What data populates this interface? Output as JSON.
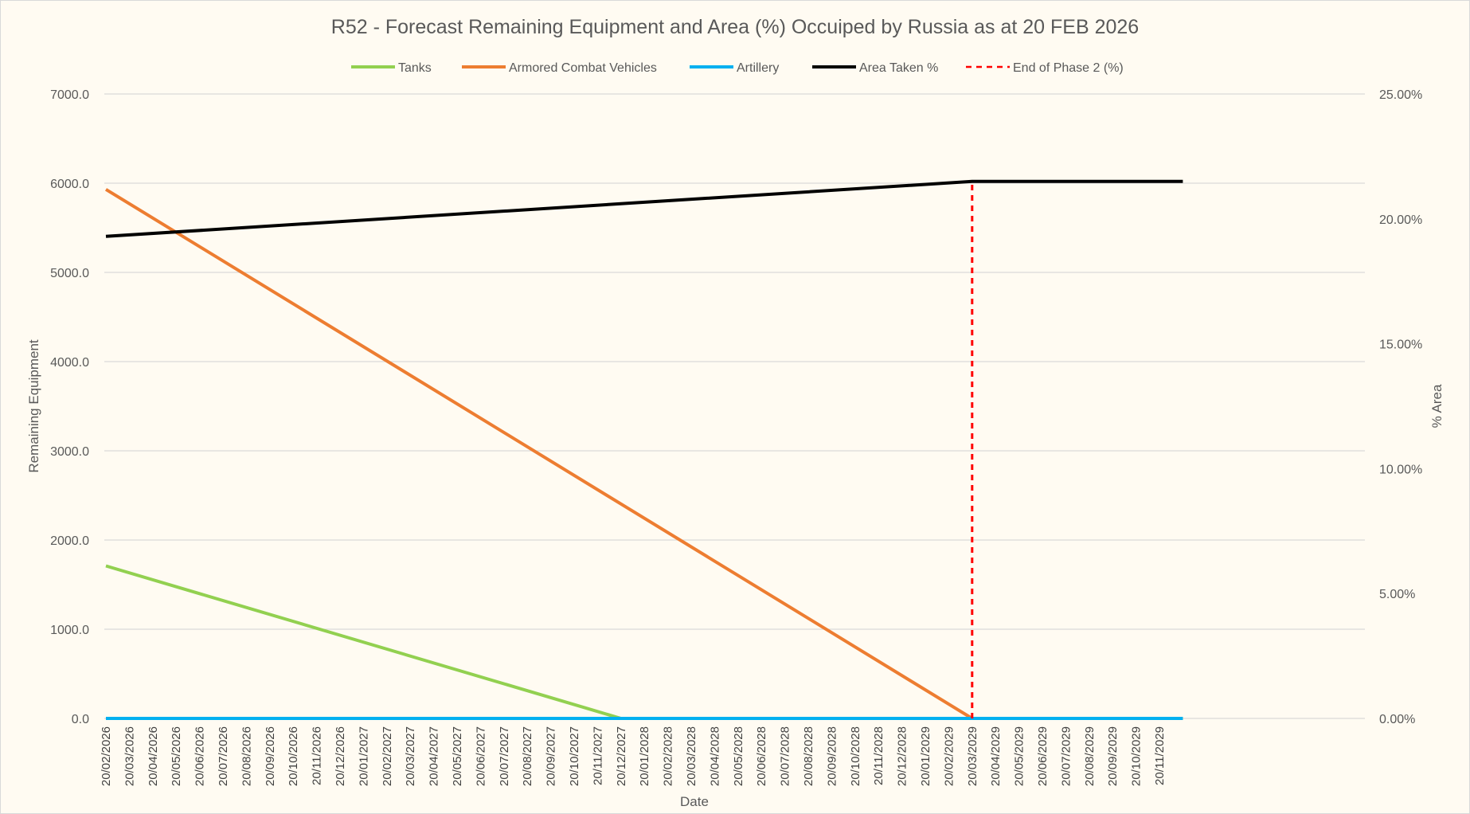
{
  "chart_data": {
    "type": "line",
    "title": "R52 - Forecast Remaining Equipment and Area (%) Occuiped by Russia as at 20 FEB 2026",
    "xlabel": "Date",
    "ylabel": "Remaining Equipment",
    "y2label": "% Area",
    "ylim": [
      0,
      7000
    ],
    "y2lim": [
      0,
      25
    ],
    "yticks": [
      "0.0",
      "1000.0",
      "2000.0",
      "3000.0",
      "4000.0",
      "5000.0",
      "6000.0",
      "7000.0"
    ],
    "y2ticks": [
      "0.00%",
      "5.00%",
      "10.00%",
      "15.00%",
      "20.00%",
      "25.00%"
    ],
    "grid": true,
    "legend_position": "top",
    "categories": [
      "20/02/2026",
      "20/03/2026",
      "20/04/2026",
      "20/05/2026",
      "20/06/2026",
      "20/07/2026",
      "20/08/2026",
      "20/09/2026",
      "20/10/2026",
      "20/11/2026",
      "20/12/2026",
      "20/01/2027",
      "20/02/2027",
      "20/03/2027",
      "20/04/2027",
      "20/05/2027",
      "20/06/2027",
      "20/07/2027",
      "20/08/2027",
      "20/09/2027",
      "20/10/2027",
      "20/11/2027",
      "20/12/2027",
      "20/01/2028",
      "20/02/2028",
      "20/03/2028",
      "20/04/2028",
      "20/05/2028",
      "20/06/2028",
      "20/07/2028",
      "20/08/2028",
      "20/09/2028",
      "20/10/2028",
      "20/11/2028",
      "20/12/2028",
      "20/01/2029",
      "20/02/2029",
      "20/03/2029",
      "20/04/2029",
      "20/05/2029",
      "20/06/2029",
      "20/07/2029",
      "20/08/2029",
      "20/09/2029",
      "20/10/2029",
      "20/11/2029"
    ],
    "series": [
      {
        "name": "Tanks",
        "axis": "left",
        "color": "#92D050",
        "dash": false,
        "points": [
          {
            "date": "20/02/2026",
            "value": 1710
          },
          {
            "date": "20/12/2027",
            "value": 0
          },
          {
            "date": "20/12/2029",
            "value": 0
          }
        ]
      },
      {
        "name": "Armored Combat Vehicles",
        "axis": "left",
        "color": "#ED7D31",
        "dash": false,
        "points": [
          {
            "date": "20/02/2026",
            "value": 5930
          },
          {
            "date": "20/03/2029",
            "value": 0
          },
          {
            "date": "20/12/2029",
            "value": 0
          }
        ]
      },
      {
        "name": "Artillery",
        "axis": "left",
        "color": "#00B0F0",
        "dash": false,
        "points": [
          {
            "date": "20/02/2026",
            "value": 0
          },
          {
            "date": "20/12/2029",
            "value": 0
          }
        ]
      },
      {
        "name": "Area Taken %",
        "axis": "right",
        "color": "#000000",
        "dash": false,
        "points": [
          {
            "date": "20/02/2026",
            "value": 19.3
          },
          {
            "date": "20/03/2029",
            "value": 21.5
          },
          {
            "date": "20/12/2029",
            "value": 21.5
          }
        ]
      },
      {
        "name": "End of Phase 2 (%)",
        "axis": "right",
        "color": "#FF0000",
        "dash": true,
        "points": [
          {
            "date": "20/03/2029",
            "value": 0
          },
          {
            "date": "20/03/2029",
            "value": 21.5
          }
        ]
      }
    ]
  }
}
